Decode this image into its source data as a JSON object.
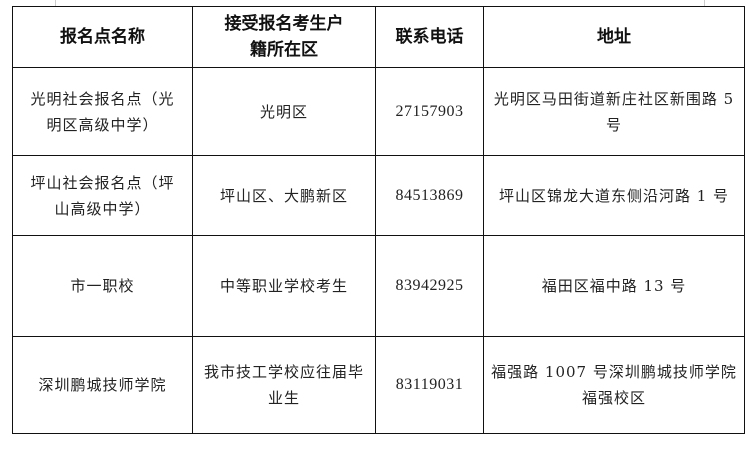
{
  "table": {
    "headers": [
      "报名点名称",
      "接受报名考生户籍所在区",
      "联系电话",
      "地址"
    ],
    "rows": [
      [
        "光明社会报名点（光明区高级中学）",
        "光明区",
        "27157903",
        "光明区马田街道新庄社区新围路 5 号"
      ],
      [
        "坪山社会报名点（坪山高级中学）",
        "坪山区、大鹏新区",
        "84513869",
        "坪山区锦龙大道东侧沿河路 1 号"
      ],
      [
        "市一职校",
        "中等职业学校考生",
        "83942925",
        "福田区福中路 13 号"
      ],
      [
        "深圳鹏城技师学院",
        "我市技工学校应往届毕业生",
        "83119031",
        "福强路 1007 号深圳鹏城技师学院福强校区"
      ]
    ]
  }
}
